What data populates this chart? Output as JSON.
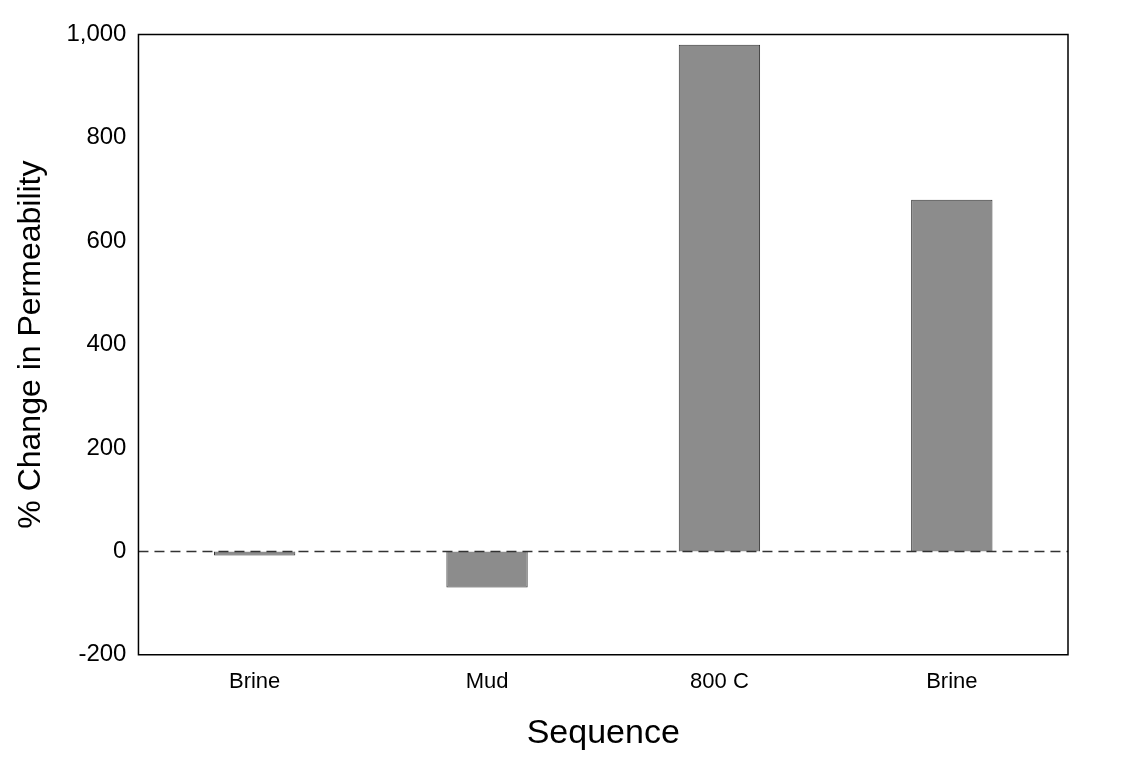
{
  "chart_data": {
    "type": "bar",
    "xlabel": "Sequence",
    "ylabel": "% Change in Permeability",
    "categories": [
      "Brine",
      "Mud",
      "800 C",
      "Brine"
    ],
    "values": [
      -8,
      -70,
      980,
      680
    ],
    "color": "#8c8c8c",
    "ylim": [
      -200,
      1000
    ],
    "yticks": [
      -200,
      0,
      200,
      400,
      600,
      800,
      {
        "value": 1000,
        "label": "1,000"
      }
    ],
    "ref_lines": [
      {
        "axis": "y",
        "value": 0,
        "color": "#333333",
        "line_style": "dashed"
      }
    ],
    "grid": false,
    "legend": false
  }
}
